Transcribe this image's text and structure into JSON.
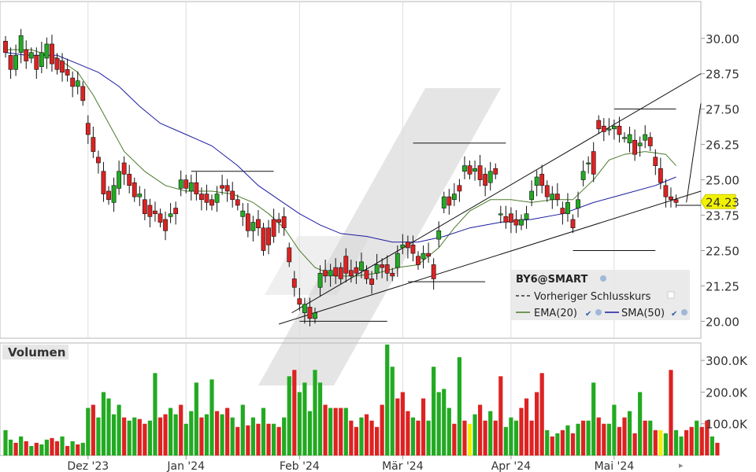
{
  "chart_data": [
    {
      "type": "candlestick",
      "symbol": "BY6@SMART",
      "ylim": [
        19.4,
        31.3
      ],
      "y_ticks": [
        "30.00",
        "28.75",
        "27.50",
        "26.25",
        "25.00",
        "23.75",
        "22.50",
        "21.25",
        "20.00"
      ],
      "y_tick_values": [
        30.0,
        28.75,
        27.5,
        26.25,
        25.0,
        23.75,
        22.5,
        21.25,
        20.0
      ],
      "last_price": "24.23",
      "legend": {
        "title": "BY6@SMART",
        "prev_close": "Vorheriger Schlusskurs",
        "ema": "EMA(20)",
        "sma": "SMA(50)"
      },
      "colors": {
        "up": "#22aa22",
        "down": "#dd2222",
        "ema": "#4a7a2a",
        "sma": "#1a1aa0",
        "last": "#f2f200",
        "watermark": "#e0e0e0"
      },
      "x_months": [
        "Dez '23",
        "Jan '24",
        "Feb '24",
        "Mär '24",
        "Apr '24",
        "Mai '24"
      ],
      "x_month_index": [
        16,
        35,
        57,
        77,
        98,
        118
      ],
      "candles": [
        [
          29.9,
          29.5
        ],
        [
          29.4,
          28.9
        ],
        [
          28.9,
          29.4
        ],
        [
          29.5,
          30.1
        ],
        [
          29.6,
          29.2
        ],
        [
          29.3,
          29.5
        ],
        [
          29.4,
          28.9
        ],
        [
          29.0,
          29.5
        ],
        [
          29.3,
          29.8
        ],
        [
          29.8,
          29.1
        ],
        [
          29.3,
          28.9
        ],
        [
          29.2,
          28.8
        ],
        [
          28.9,
          28.7
        ],
        [
          28.6,
          28.3
        ],
        [
          28.3,
          28.5
        ],
        [
          28.3,
          27.8
        ],
        [
          27.0,
          26.6
        ],
        [
          26.5,
          26.0
        ],
        [
          25.8,
          25.6
        ],
        [
          25.3,
          24.5
        ],
        [
          24.6,
          24.3
        ],
        [
          24.2,
          24.8
        ],
        [
          24.7,
          25.3
        ],
        [
          25.6,
          25.2
        ],
        [
          25.2,
          24.8
        ],
        [
          24.9,
          24.4
        ],
        [
          24.4,
          24.5
        ],
        [
          24.3,
          23.8
        ],
        [
          24.1,
          23.7
        ],
        [
          23.9,
          23.8
        ],
        [
          23.8,
          23.5
        ],
        [
          23.6,
          23.2
        ],
        [
          23.7,
          23.8
        ],
        [
          24.0,
          23.8
        ],
        [
          24.7,
          25.0
        ],
        [
          25.0,
          24.7
        ],
        [
          24.6,
          24.9
        ],
        [
          24.9,
          24.5
        ],
        [
          24.5,
          24.3
        ],
        [
          24.5,
          24.2
        ],
        [
          24.3,
          24.1
        ],
        [
          24.2,
          24.5
        ],
        [
          24.8,
          24.7
        ],
        [
          24.8,
          24.6
        ],
        [
          24.6,
          24.3
        ],
        [
          24.3,
          24.1
        ],
        [
          23.7,
          23.9
        ],
        [
          23.8,
          23.2
        ],
        [
          23.2,
          23.5
        ],
        [
          23.6,
          23.3
        ],
        [
          23.3,
          22.5
        ],
        [
          23.3,
          22.7
        ],
        [
          23.6,
          23.0
        ],
        [
          23.6,
          23.5
        ],
        [
          23.7,
          23.3
        ],
        [
          22.6,
          22.1
        ],
        [
          21.5,
          21.2
        ],
        [
          20.8,
          20.6
        ],
        [
          20.3,
          20.6
        ],
        [
          20.5,
          20.1
        ],
        [
          20.1,
          20.3
        ],
        [
          21.2,
          21.7
        ],
        [
          21.8,
          21.6
        ],
        [
          21.6,
          21.8
        ],
        [
          21.9,
          21.6
        ],
        [
          21.9,
          21.5
        ],
        [
          22.3,
          21.7
        ],
        [
          21.8,
          21.6
        ],
        [
          21.9,
          21.7
        ],
        [
          21.8,
          22.1
        ],
        [
          21.8,
          21.5
        ],
        [
          21.5,
          21.3
        ],
        [
          21.7,
          22.0
        ],
        [
          22.0,
          21.9
        ],
        [
          22.0,
          21.7
        ],
        [
          21.7,
          21.6
        ],
        [
          21.9,
          22.4
        ],
        [
          22.6,
          22.7
        ],
        [
          22.8,
          22.6
        ],
        [
          22.7,
          22.4
        ],
        [
          22.3,
          22.0
        ],
        [
          22.2,
          22.4
        ],
        [
          22.4,
          22.3
        ],
        [
          22.0,
          21.5
        ],
        [
          22.9,
          23.2
        ],
        [
          24.0,
          24.4
        ],
        [
          24.4,
          24.1
        ],
        [
          24.3,
          24.5
        ],
        [
          24.8,
          24.6
        ],
        [
          25.3,
          25.5
        ],
        [
          25.5,
          25.2
        ],
        [
          25.3,
          25.4
        ],
        [
          25.5,
          25.0
        ],
        [
          25.2,
          24.8
        ],
        [
          24.9,
          25.3
        ],
        [
          25.4,
          25.2
        ],
        [
          23.8,
          23.8
        ],
        [
          23.7,
          23.5
        ],
        [
          23.8,
          23.5
        ],
        [
          23.6,
          23.4
        ],
        [
          23.4,
          23.6
        ],
        [
          23.6,
          23.8
        ],
        [
          24.3,
          24.6
        ],
        [
          24.8,
          25.1
        ],
        [
          25.2,
          24.8
        ],
        [
          24.8,
          24.4
        ],
        [
          24.3,
          24.5
        ],
        [
          24.5,
          24.3
        ],
        [
          24.0,
          23.8
        ],
        [
          23.8,
          24.2
        ],
        [
          23.6,
          23.3
        ],
        [
          24.0,
          24.3
        ],
        [
          25.0,
          25.3
        ],
        [
          25.6,
          25.6
        ],
        [
          26.0,
          25.2
        ],
        [
          27.1,
          26.8
        ],
        [
          26.9,
          26.7
        ],
        [
          26.8,
          26.8
        ],
        [
          26.8,
          26.9
        ],
        [
          26.9,
          26.6
        ],
        [
          26.5,
          26.5
        ],
        [
          26.3,
          26.6
        ],
        [
          26.4,
          25.9
        ],
        [
          26.2,
          26.3
        ],
        [
          26.4,
          26.6
        ],
        [
          26.5,
          26.2
        ],
        [
          25.8,
          25.5
        ],
        [
          25.4,
          24.9
        ],
        [
          24.8,
          24.4
        ],
        [
          24.4,
          24.3
        ],
        [
          24.3,
          24.2
        ]
      ],
      "ema": [
        [
          0,
          29.6
        ],
        [
          5,
          29.6
        ],
        [
          10,
          29.3
        ],
        [
          14,
          28.8
        ],
        [
          17,
          28.0
        ],
        [
          20,
          27.0
        ],
        [
          23,
          26.0
        ],
        [
          27,
          25.3
        ],
        [
          31,
          24.8
        ],
        [
          35,
          24.6
        ],
        [
          40,
          24.6
        ],
        [
          44,
          24.5
        ],
        [
          48,
          24.2
        ],
        [
          51,
          23.8
        ],
        [
          54,
          23.3
        ],
        [
          57,
          22.5
        ],
        [
          60,
          21.9
        ],
        [
          64,
          21.6
        ],
        [
          68,
          21.6
        ],
        [
          72,
          21.7
        ],
        [
          76,
          21.9
        ],
        [
          80,
          22.0
        ],
        [
          84,
          22.6
        ],
        [
          87,
          23.3
        ],
        [
          90,
          23.9
        ],
        [
          94,
          24.3
        ],
        [
          98,
          24.3
        ],
        [
          102,
          24.2
        ],
        [
          106,
          24.3
        ],
        [
          110,
          24.3
        ],
        [
          114,
          25.0
        ],
        [
          117,
          25.7
        ],
        [
          120,
          25.9
        ],
        [
          124,
          26.0
        ],
        [
          128,
          25.9
        ],
        [
          130,
          25.5
        ]
      ],
      "sma": [
        [
          0,
          29.5
        ],
        [
          4,
          29.4
        ],
        [
          10,
          29.4
        ],
        [
          14,
          29.1
        ],
        [
          18,
          28.8
        ],
        [
          22,
          28.3
        ],
        [
          26,
          27.6
        ],
        [
          30,
          27.0
        ],
        [
          35,
          26.6
        ],
        [
          40,
          26.2
        ],
        [
          45,
          25.5
        ],
        [
          49,
          24.8
        ],
        [
          53,
          24.3
        ],
        [
          57,
          23.8
        ],
        [
          61,
          23.4
        ],
        [
          65,
          23.1
        ],
        [
          70,
          23.0
        ],
        [
          75,
          22.8
        ],
        [
          80,
          22.8
        ],
        [
          85,
          23.0
        ],
        [
          90,
          23.3
        ],
        [
          96,
          23.5
        ],
        [
          102,
          23.6
        ],
        [
          108,
          23.8
        ],
        [
          114,
          24.2
        ],
        [
          120,
          24.5
        ],
        [
          126,
          24.8
        ],
        [
          130,
          25.1
        ]
      ],
      "trendlines": [
        [
          [
            55.5,
            20.3
          ],
          [
            147,
            28.75
          ]
        ],
        [
          [
            53,
            19.9
          ],
          [
            147,
            24.6
          ]
        ],
        [
          [
            132,
            24.2
          ],
          [
            147,
            27.7
          ]
        ],
        [
          [
            36,
            25.3
          ],
          [
            52,
            25.3
          ]
        ],
        [
          [
            79,
            26.3
          ],
          [
            97,
            26.3
          ]
        ],
        [
          [
            78,
            21.4
          ],
          [
            93,
            21.4
          ]
        ],
        [
          [
            57,
            20.0
          ],
          [
            74,
            20.0
          ]
        ],
        [
          [
            110,
            22.5
          ],
          [
            126,
            22.5
          ]
        ],
        [
          [
            118,
            27.5
          ],
          [
            130,
            27.5
          ]
        ],
        [
          [
            130,
            24.1
          ],
          [
            147,
            24.1
          ]
        ]
      ]
    },
    {
      "type": "bar",
      "title": "Volumen",
      "y_ticks": [
        "300.0K",
        "200.0K",
        "100.0K"
      ],
      "y_tick_values": [
        300000,
        200000,
        100000
      ],
      "ylim": [
        0,
        355000
      ],
      "volumes": [
        [
          80000,
          1
        ],
        [
          50000,
          1
        ],
        [
          40000,
          0
        ],
        [
          60000,
          1
        ],
        [
          45000,
          0
        ],
        [
          30000,
          1
        ],
        [
          40000,
          0
        ],
        [
          35000,
          1
        ],
        [
          50000,
          1
        ],
        [
          55000,
          0
        ],
        [
          45000,
          0
        ],
        [
          60000,
          1
        ],
        [
          30000,
          0
        ],
        [
          45000,
          1
        ],
        [
          35000,
          0
        ],
        [
          40000,
          1
        ],
        [
          150000,
          1
        ],
        [
          160000,
          0
        ],
        [
          120000,
          1
        ],
        [
          200000,
          1
        ],
        [
          180000,
          1
        ],
        [
          130000,
          1
        ],
        [
          160000,
          1
        ],
        [
          120000,
          0
        ],
        [
          110000,
          1
        ],
        [
          120000,
          1
        ],
        [
          115000,
          0
        ],
        [
          100000,
          0
        ],
        [
          110000,
          1
        ],
        [
          260000,
          1
        ],
        [
          120000,
          0
        ],
        [
          130000,
          0
        ],
        [
          150000,
          1
        ],
        [
          130000,
          1
        ],
        [
          160000,
          0
        ],
        [
          100000,
          1
        ],
        [
          140000,
          1
        ],
        [
          230000,
          1
        ],
        [
          120000,
          0
        ],
        [
          130000,
          1
        ],
        [
          240000,
          1
        ],
        [
          140000,
          0
        ],
        [
          130000,
          1
        ],
        [
          150000,
          0
        ],
        [
          120000,
          1
        ],
        [
          90000,
          0
        ],
        [
          160000,
          1
        ],
        [
          95000,
          0
        ],
        [
          120000,
          1
        ],
        [
          100000,
          0
        ],
        [
          150000,
          1
        ],
        [
          100000,
          0
        ],
        [
          100000,
          1
        ],
        [
          90000,
          0
        ],
        [
          120000,
          1
        ],
        [
          250000,
          1
        ],
        [
          270000,
          0
        ],
        [
          200000,
          1
        ],
        [
          230000,
          1
        ],
        [
          140000,
          1
        ],
        [
          270000,
          1
        ],
        [
          230000,
          1
        ],
        [
          160000,
          0
        ],
        [
          150000,
          1
        ],
        [
          150000,
          0
        ],
        [
          150000,
          0
        ],
        [
          150000,
          1
        ],
        [
          110000,
          0
        ],
        [
          90000,
          0
        ],
        [
          120000,
          1
        ],
        [
          130000,
          0
        ],
        [
          110000,
          0
        ],
        [
          90000,
          0
        ],
        [
          160000,
          0
        ],
        [
          350000,
          1
        ],
        [
          280000,
          1
        ],
        [
          180000,
          0
        ],
        [
          200000,
          0
        ],
        [
          140000,
          0
        ],
        [
          120000,
          1
        ],
        [
          110000,
          0
        ],
        [
          180000,
          0
        ],
        [
          110000,
          1
        ],
        [
          280000,
          1
        ],
        [
          200000,
          1
        ],
        [
          210000,
          1
        ],
        [
          150000,
          1
        ],
        [
          100000,
          0
        ],
        [
          310000,
          1
        ],
        [
          110000,
          0
        ],
        [
          100000,
          2
        ],
        [
          130000,
          1
        ],
        [
          160000,
          0
        ],
        [
          110000,
          0
        ],
        [
          140000,
          1
        ],
        [
          110000,
          0
        ],
        [
          250000,
          0
        ],
        [
          90000,
          1
        ],
        [
          120000,
          1
        ],
        [
          110000,
          1
        ],
        [
          150000,
          0
        ],
        [
          180000,
          0
        ],
        [
          110000,
          0
        ],
        [
          200000,
          0
        ],
        [
          260000,
          0
        ],
        [
          80000,
          1
        ],
        [
          60000,
          0
        ],
        [
          70000,
          1
        ],
        [
          80000,
          0
        ],
        [
          95000,
          1
        ],
        [
          70000,
          0
        ],
        [
          100000,
          1
        ],
        [
          110000,
          0
        ],
        [
          110000,
          1
        ],
        [
          230000,
          1
        ],
        [
          120000,
          0
        ],
        [
          100000,
          0
        ],
        [
          100000,
          1
        ],
        [
          160000,
          1
        ],
        [
          90000,
          0
        ],
        [
          120000,
          0
        ],
        [
          140000,
          1
        ],
        [
          70000,
          0
        ],
        [
          200000,
          1
        ],
        [
          110000,
          0
        ],
        [
          110000,
          1
        ],
        [
          80000,
          0
        ],
        [
          80000,
          2
        ],
        [
          70000,
          1
        ],
        [
          270000,
          0
        ],
        [
          80000,
          1
        ],
        [
          60000,
          1
        ],
        [
          80000,
          0
        ],
        [
          90000,
          0
        ],
        [
          110000,
          1
        ],
        [
          90000,
          0
        ],
        [
          110000,
          0
        ],
        [
          60000,
          1
        ],
        [
          40000,
          0
        ]
      ]
    }
  ]
}
